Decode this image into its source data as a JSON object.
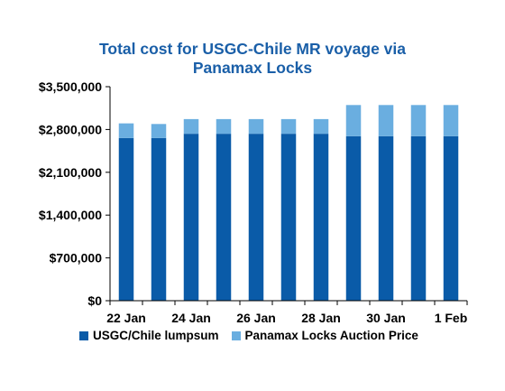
{
  "chart_data": {
    "type": "bar",
    "stacked": true,
    "title_lines": [
      "Total cost for USGC-Chile MR voyage via",
      "Panamax Locks"
    ],
    "ylim": [
      0,
      3500000
    ],
    "yticks": [
      0,
      700000,
      1400000,
      2100000,
      2800000,
      3500000
    ],
    "ytick_labels": [
      "$0",
      "$700,000",
      "$1,400,000",
      "$2,100,000",
      "$2,800,000",
      "$3,500,000"
    ],
    "xtick_labels": [
      "22 Jan",
      "24 Jan",
      "26 Jan",
      "28 Jan",
      "30 Jan",
      "1 Feb"
    ],
    "bar_count": 11,
    "series": [
      {
        "name": "USGC/Chile lumpsum",
        "color": "#0a5ba8",
        "values": [
          2660000,
          2660000,
          2730000,
          2730000,
          2730000,
          2730000,
          2730000,
          2690000,
          2690000,
          2690000,
          2690000
        ]
      },
      {
        "name": "Panamax Locks Auction Price",
        "color": "#6aaee0",
        "values": [
          240000,
          230000,
          240000,
          240000,
          240000,
          240000,
          240000,
          510000,
          510000,
          510000,
          510000
        ]
      }
    ],
    "legend_position": "bottom"
  }
}
